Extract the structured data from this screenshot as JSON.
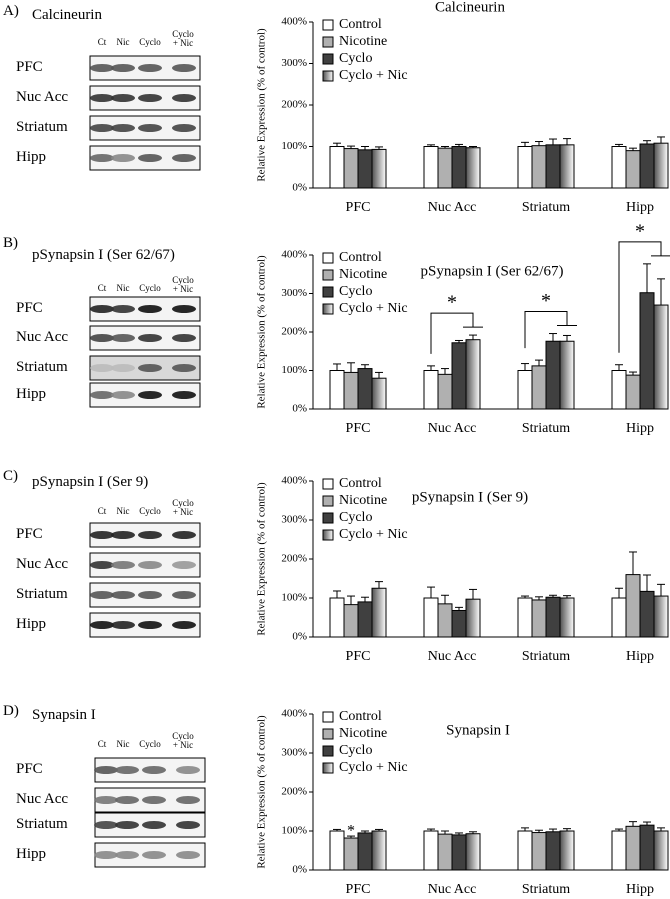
{
  "blots": [
    {
      "panel": "A)",
      "title": "Calcineurin",
      "lanes": [
        "Ct",
        "Nic",
        "Cyclo",
        "Cyclo + Nic"
      ],
      "regions": [
        "PFC",
        "Nuc Acc",
        "Striatum",
        "Hipp"
      ]
    },
    {
      "panel": "B)",
      "title": "pSynapsin I (Ser 62/67)",
      "lanes": [
        "Ct",
        "Nic",
        "Cyclo",
        "Cyclo + Nic"
      ],
      "regions": [
        "PFC",
        "Nuc Acc",
        "Striatum",
        "Hipp"
      ]
    },
    {
      "panel": "C)",
      "title": "pSynapsin I (Ser 9)",
      "lanes": [
        "Ct",
        "Nic",
        "Cyclo",
        "Cyclo + Nic"
      ],
      "regions": [
        "PFC",
        "Nuc Acc",
        "Striatum",
        "Hipp"
      ]
    },
    {
      "panel": "D)",
      "title": "Synapsin I",
      "lanes": [
        "Ct",
        "Nic",
        "Cyclo",
        "Cyclo + Nic"
      ],
      "regions": [
        "PFC",
        "Nuc Acc",
        "Striatum",
        "Hipp"
      ]
    }
  ],
  "chart_data": [
    {
      "type": "bar",
      "title": "Calcineurin",
      "y_label": "Relative Expression (% of control)",
      "categories": [
        "PFC",
        "Nuc Acc",
        "Striatum",
        "Hipp"
      ],
      "series": [
        {
          "name": "Control",
          "color": "#ffffff",
          "values": [
            100,
            100,
            100,
            100
          ],
          "errors": [
            8,
            4,
            10,
            5
          ]
        },
        {
          "name": "Nicotine",
          "color": "#b0b0b0",
          "values": [
            95,
            96,
            102,
            90
          ],
          "errors": [
            6,
            4,
            10,
            6
          ]
        },
        {
          "name": "Cyclo",
          "color": "#404040",
          "values": [
            92,
            100,
            104,
            106
          ],
          "errors": [
            8,
            5,
            14,
            8
          ]
        },
        {
          "name": "Cyclo + Nic",
          "color": "#505050",
          "gradient": true,
          "values": [
            93,
            97,
            104,
            108
          ],
          "errors": [
            6,
            3,
            15,
            15
          ]
        }
      ],
      "ylim": [
        0,
        400
      ],
      "yticks": [
        {
          "value": 0,
          "label": "0%"
        },
        {
          "value": 100,
          "label": "100%"
        },
        {
          "value": 200,
          "label": "200%"
        },
        {
          "value": 300,
          "label": "300%"
        },
        {
          "value": 400,
          "label": "400%"
        }
      ],
      "legend": "upper left",
      "significance": []
    },
    {
      "type": "bar",
      "title": "pSynapsin I (Ser 62/67)",
      "y_label": "Relative Expression (% of control)",
      "categories": [
        "PFC",
        "Nuc Acc",
        "Striatum",
        "Hipp"
      ],
      "series": [
        {
          "name": "Control",
          "color": "#ffffff",
          "values": [
            100,
            100,
            100,
            100
          ],
          "errors": [
            17,
            12,
            18,
            15
          ]
        },
        {
          "name": "Nicotine",
          "color": "#b0b0b0",
          "values": [
            95,
            90,
            112,
            88
          ],
          "errors": [
            25,
            15,
            15,
            8
          ]
        },
        {
          "name": "Cyclo",
          "color": "#404040",
          "values": [
            105,
            172,
            176,
            302
          ],
          "errors": [
            10,
            6,
            20,
            75
          ]
        },
        {
          "name": "Cyclo + Nic",
          "color": "#505050",
          "gradient": true,
          "values": [
            80,
            180,
            176,
            270
          ],
          "errors": [
            15,
            12,
            15,
            68
          ]
        }
      ],
      "ylim": [
        0,
        400
      ],
      "yticks": [
        {
          "value": 0,
          "label": "0%"
        },
        {
          "value": 100,
          "label": "100%"
        },
        {
          "value": 200,
          "label": "200%"
        },
        {
          "value": 300,
          "label": "300%"
        },
        {
          "value": 400,
          "label": "400%"
        }
      ],
      "legend": "upper left",
      "significance": [
        {
          "text": "*",
          "category": "Nuc Acc"
        },
        {
          "text": "*",
          "category": "Striatum"
        },
        {
          "text": "*",
          "category": "Hipp"
        }
      ]
    },
    {
      "type": "bar",
      "title": "pSynapsin I (Ser 9)",
      "y_label": "Relative Expression (% of control)",
      "categories": [
        "PFC",
        "Nuc Acc",
        "Striatum",
        "Hipp"
      ],
      "series": [
        {
          "name": "Control",
          "color": "#ffffff",
          "values": [
            100,
            100,
            100,
            100
          ],
          "errors": [
            18,
            28,
            5,
            25
          ]
        },
        {
          "name": "Nicotine",
          "color": "#b0b0b0",
          "values": [
            83,
            85,
            95,
            160
          ],
          "errors": [
            22,
            22,
            8,
            58
          ]
        },
        {
          "name": "Cyclo",
          "color": "#404040",
          "values": [
            90,
            68,
            102,
            117
          ],
          "errors": [
            12,
            8,
            5,
            42
          ]
        },
        {
          "name": "Cyclo + Nic",
          "color": "#505050",
          "gradient": true,
          "values": [
            125,
            97,
            100,
            105
          ],
          "errors": [
            17,
            25,
            6,
            30
          ]
        }
      ],
      "ylim": [
        0,
        400
      ],
      "yticks": [
        {
          "value": 0,
          "label": "0%"
        },
        {
          "value": 100,
          "label": "100%"
        },
        {
          "value": 200,
          "label": "200%"
        },
        {
          "value": 300,
          "label": "300%"
        },
        {
          "value": 400,
          "label": "400%"
        }
      ],
      "legend": "upper left",
      "significance": []
    },
    {
      "type": "bar",
      "title": "Synapsin I",
      "y_label": "Relative Expression (% of control)",
      "categories": [
        "PFC",
        "Nuc Acc",
        "Striatum",
        "Hipp"
      ],
      "series": [
        {
          "name": "Control",
          "color": "#ffffff",
          "values": [
            100,
            100,
            100,
            100
          ],
          "errors": [
            4,
            5,
            8,
            5
          ]
        },
        {
          "name": "Nicotine",
          "color": "#b0b0b0",
          "values": [
            82,
            92,
            96,
            112
          ],
          "errors": [
            5,
            8,
            6,
            12
          ]
        },
        {
          "name": "Cyclo",
          "color": "#404040",
          "values": [
            95,
            90,
            98,
            115
          ],
          "errors": [
            5,
            5,
            7,
            8
          ]
        },
        {
          "name": "Cyclo + Nic",
          "color": "#505050",
          "gradient": true,
          "values": [
            100,
            93,
            100,
            100
          ],
          "errors": [
            4,
            5,
            6,
            8
          ]
        }
      ],
      "ylim": [
        0,
        400
      ],
      "yticks": [
        {
          "value": 0,
          "label": "0%"
        },
        {
          "value": 100,
          "label": "100%"
        },
        {
          "value": 200,
          "label": "200%"
        },
        {
          "value": 300,
          "label": "300%"
        },
        {
          "value": 400,
          "label": "400%"
        }
      ],
      "legend": "upper left",
      "significance": [
        {
          "text": "*",
          "category": "PFC",
          "series": "Nicotine"
        }
      ]
    }
  ]
}
